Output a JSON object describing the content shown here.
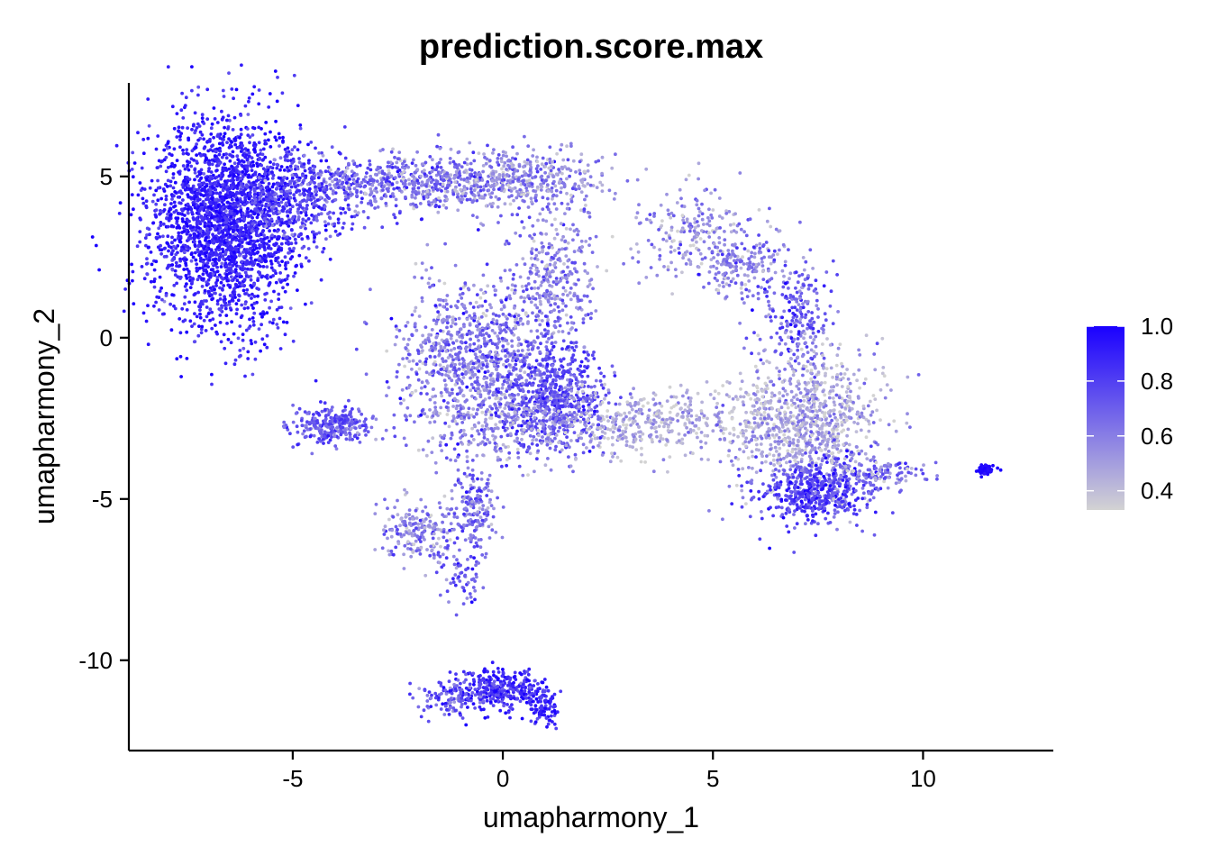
{
  "chart_data": {
    "type": "scatter",
    "title": "prediction.score.max",
    "xlabel": "umapharmony_1",
    "ylabel": "umapharmony_2",
    "xlim": [
      -8.9,
      13.1
    ],
    "ylim": [
      -12.8,
      7.9
    ],
    "xticks": [
      -5,
      0,
      5,
      10
    ],
    "yticks": [
      -10,
      -5,
      0,
      5
    ],
    "xtick_labels": [
      "-5",
      "0",
      "5",
      "10"
    ],
    "ytick_labels": [
      "-10",
      "-5",
      "0",
      "5"
    ],
    "grid": false,
    "legend": {
      "placement": "right",
      "min": 0.33,
      "max": 1.0,
      "ticks": [
        0.4,
        0.6,
        0.8,
        1.0
      ],
      "tick_labels": [
        "0.4",
        "0.6",
        "0.8",
        "1.0"
      ],
      "color_low": "#d3d3d3",
      "color_high": "#1a00ff"
    },
    "clusters": [
      {
        "cx": -6.6,
        "cy": 3.6,
        "sx": 0.9,
        "sy": 1.6,
        "n": 2400,
        "score": 0.9,
        "spread": 0.08
      },
      {
        "cx": -4.8,
        "cy": 4.4,
        "sx": 0.7,
        "sy": 0.7,
        "n": 400,
        "score": 0.78,
        "spread": 0.1
      },
      {
        "cx": -2.4,
        "cy": 4.8,
        "sx": 1.2,
        "sy": 0.45,
        "n": 500,
        "score": 0.68,
        "spread": 0.12
      },
      {
        "cx": 0.3,
        "cy": 4.9,
        "sx": 1.1,
        "sy": 0.45,
        "n": 450,
        "score": 0.56,
        "spread": 0.13
      },
      {
        "cx": 1.2,
        "cy": 1.8,
        "sx": 0.5,
        "sy": 1.2,
        "n": 350,
        "score": 0.6,
        "spread": 0.12
      },
      {
        "cx": -0.7,
        "cy": -0.6,
        "sx": 0.9,
        "sy": 1.1,
        "n": 900,
        "score": 0.62,
        "spread": 0.13
      },
      {
        "cx": 1.2,
        "cy": -1.8,
        "sx": 0.6,
        "sy": 0.8,
        "n": 600,
        "score": 0.76,
        "spread": 0.1
      },
      {
        "cx": 0.4,
        "cy": -2.8,
        "sx": 1.2,
        "sy": 0.5,
        "n": 300,
        "score": 0.58,
        "spread": 0.13
      },
      {
        "cx": 3.6,
        "cy": -2.6,
        "sx": 1.3,
        "sy": 0.5,
        "n": 400,
        "score": 0.45,
        "spread": 0.1
      },
      {
        "cx": 4.5,
        "cy": 3.3,
        "sx": 0.8,
        "sy": 0.7,
        "n": 200,
        "score": 0.55,
        "spread": 0.12
      },
      {
        "cx": 5.8,
        "cy": 2.3,
        "sx": 0.6,
        "sy": 0.6,
        "n": 200,
        "score": 0.6,
        "spread": 0.12
      },
      {
        "cx": 7.0,
        "cy": 0.6,
        "sx": 0.4,
        "sy": 0.8,
        "n": 200,
        "score": 0.72,
        "spread": 0.14
      },
      {
        "cx": 7.2,
        "cy": -2.6,
        "sx": 0.9,
        "sy": 1.0,
        "n": 900,
        "score": 0.48,
        "spread": 0.12
      },
      {
        "cx": 7.4,
        "cy": -4.8,
        "sx": 0.7,
        "sy": 0.5,
        "n": 500,
        "score": 0.78,
        "spread": 0.12
      },
      {
        "cx": 9.0,
        "cy": -4.2,
        "sx": 0.6,
        "sy": 0.25,
        "n": 120,
        "score": 0.6,
        "spread": 0.15
      },
      {
        "cx": 11.5,
        "cy": -4.1,
        "sx": 0.12,
        "sy": 0.08,
        "n": 60,
        "score": 0.98,
        "spread": 0.02
      },
      {
        "cx": -4.1,
        "cy": -2.7,
        "sx": 0.45,
        "sy": 0.3,
        "n": 280,
        "score": 0.72,
        "spread": 0.1
      },
      {
        "cx": -2.0,
        "cy": -6.0,
        "sx": 0.5,
        "sy": 0.5,
        "n": 200,
        "score": 0.58,
        "spread": 0.12
      },
      {
        "cx": -0.7,
        "cy": -5.2,
        "sx": 0.25,
        "sy": 0.7,
        "n": 180,
        "score": 0.66,
        "spread": 0.12
      },
      {
        "cx": -1.0,
        "cy": -7.2,
        "sx": 0.3,
        "sy": 0.5,
        "n": 60,
        "score": 0.74,
        "spread": 0.12
      },
      {
        "cx": 0.0,
        "cy": -10.9,
        "sx": 0.5,
        "sy": 0.3,
        "n": 320,
        "score": 0.86,
        "spread": 0.1
      },
      {
        "cx": -1.2,
        "cy": -11.2,
        "sx": 0.4,
        "sy": 0.3,
        "n": 120,
        "score": 0.74,
        "spread": 0.12
      },
      {
        "cx": 1.0,
        "cy": -11.5,
        "sx": 0.2,
        "sy": 0.3,
        "n": 80,
        "score": 0.88,
        "spread": 0.08
      }
    ]
  }
}
